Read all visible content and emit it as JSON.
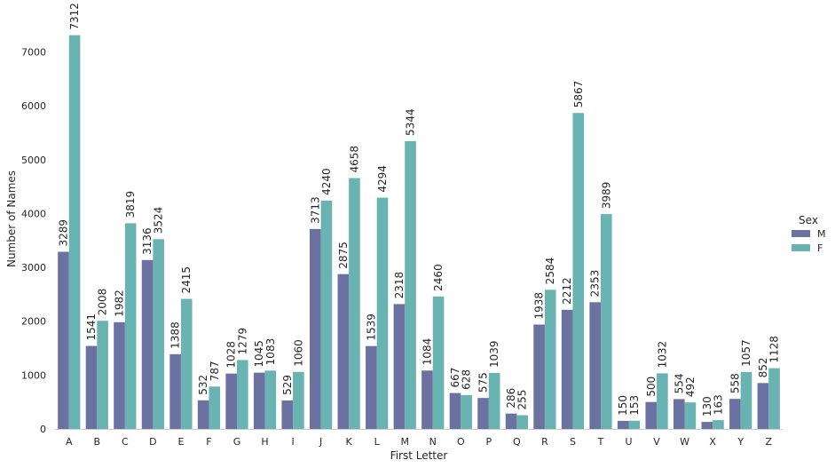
{
  "chart_data": {
    "type": "bar",
    "title": "",
    "xlabel": "First Letter",
    "ylabel": "Number of Names",
    "ylim": [
      0,
      7800
    ],
    "yticks": [
      0,
      1000,
      2000,
      3000,
      4000,
      5000,
      6000,
      7000
    ],
    "categories": [
      "A",
      "B",
      "C",
      "D",
      "E",
      "F",
      "G",
      "H",
      "I",
      "J",
      "K",
      "L",
      "M",
      "N",
      "O",
      "P",
      "Q",
      "R",
      "S",
      "T",
      "U",
      "V",
      "W",
      "X",
      "Y",
      "Z"
    ],
    "legend": {
      "title": "Sex",
      "position": "right"
    },
    "series": [
      {
        "name": "M",
        "color": "#6b71a0",
        "values": [
          3289,
          1541,
          1982,
          3136,
          1388,
          532,
          1028,
          1045,
          529,
          3713,
          2875,
          1539,
          2318,
          1084,
          667,
          575,
          286,
          1938,
          2212,
          2353,
          150,
          500,
          554,
          130,
          558,
          852
        ]
      },
      {
        "name": "F",
        "color": "#6ab3b3",
        "values": [
          7312,
          2008,
          3819,
          3524,
          2415,
          787,
          1279,
          1083,
          1060,
          4240,
          4658,
          4294,
          5344,
          2460,
          628,
          1039,
          255,
          2584,
          5867,
          3989,
          153,
          1032,
          492,
          163,
          1057,
          1128
        ]
      }
    ]
  }
}
